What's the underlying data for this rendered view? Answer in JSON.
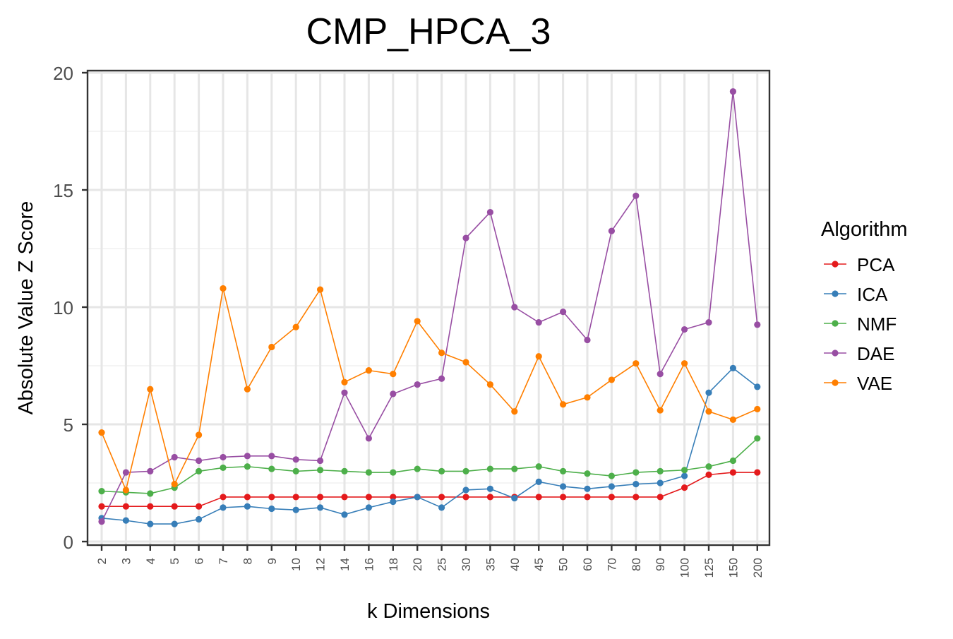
{
  "chart_data": {
    "type": "line",
    "title": "CMP_HPCA_3",
    "xlabel": "k Dimensions",
    "ylabel": "Absolute Value Z Score",
    "ylim": [
      0,
      20
    ],
    "yticks": [
      0,
      5,
      10,
      15,
      20
    ],
    "grid": true,
    "legend": {
      "title": "Algorithm",
      "position": "right"
    },
    "categories": [
      "2",
      "3",
      "4",
      "5",
      "6",
      "7",
      "8",
      "9",
      "10",
      "12",
      "14",
      "16",
      "18",
      "20",
      "25",
      "30",
      "35",
      "40",
      "45",
      "50",
      "60",
      "70",
      "80",
      "90",
      "100",
      "125",
      "150",
      "200"
    ],
    "series": [
      {
        "name": "PCA",
        "color": "#e41a1c",
        "values": [
          1.5,
          1.5,
          1.5,
          1.5,
          1.5,
          1.9,
          1.9,
          1.9,
          1.9,
          1.9,
          1.9,
          1.9,
          1.9,
          1.9,
          1.9,
          1.9,
          1.9,
          1.9,
          1.9,
          1.9,
          1.9,
          1.9,
          1.9,
          1.9,
          2.3,
          2.85,
          2.95,
          2.95
        ]
      },
      {
        "name": "ICA",
        "color": "#377eb8",
        "values": [
          1.0,
          0.9,
          0.75,
          0.75,
          0.95,
          1.45,
          1.5,
          1.4,
          1.35,
          1.45,
          1.15,
          1.45,
          1.7,
          1.9,
          1.45,
          2.2,
          2.25,
          1.85,
          2.55,
          2.35,
          2.25,
          2.35,
          2.45,
          2.5,
          2.8,
          6.35,
          7.4,
          6.6
        ]
      },
      {
        "name": "NMF",
        "color": "#4daf4a",
        "values": [
          2.15,
          2.1,
          2.05,
          2.3,
          3.0,
          3.15,
          3.2,
          3.1,
          3.0,
          3.05,
          3.0,
          2.95,
          2.95,
          3.1,
          3.0,
          3.0,
          3.1,
          3.1,
          3.2,
          3.0,
          2.9,
          2.8,
          2.95,
          3.0,
          3.05,
          3.2,
          3.45,
          4.4
        ]
      },
      {
        "name": "DAE",
        "color": "#984ea3",
        "values": [
          0.85,
          2.95,
          3.0,
          3.6,
          3.45,
          3.6,
          3.65,
          3.65,
          3.5,
          3.45,
          6.35,
          4.4,
          6.3,
          6.7,
          6.95,
          12.95,
          14.05,
          10.0,
          9.35,
          9.8,
          8.6,
          13.25,
          14.75,
          7.15,
          9.05,
          9.35,
          19.2,
          9.25
        ]
      },
      {
        "name": "VAE",
        "color": "#ff7f00",
        "values": [
          4.65,
          2.2,
          6.5,
          2.45,
          4.55,
          10.8,
          6.5,
          8.3,
          9.15,
          10.75,
          6.8,
          7.3,
          7.15,
          9.4,
          8.05,
          7.65,
          6.7,
          5.55,
          7.9,
          5.85,
          6.15,
          6.9,
          7.6,
          5.6,
          7.6,
          5.55,
          5.2,
          5.65
        ]
      }
    ]
  }
}
